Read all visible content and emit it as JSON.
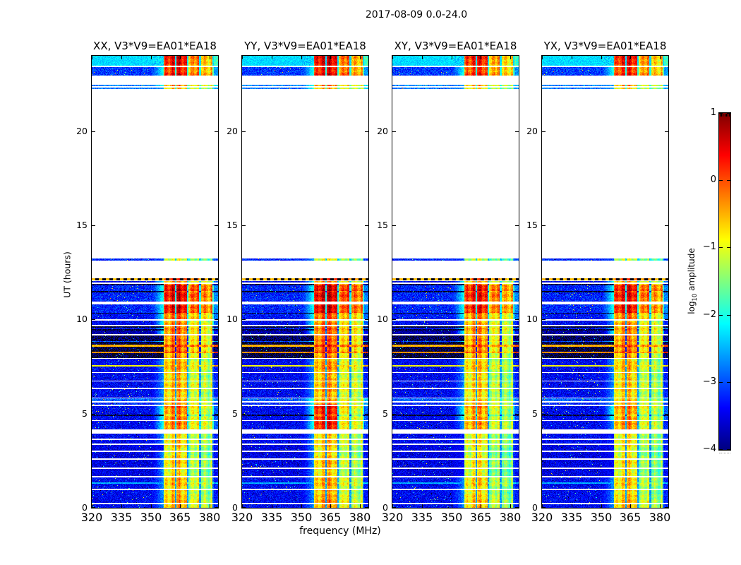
{
  "figure": {
    "title": "2017-08-09 0.0-24.0",
    "background": "#ffffff"
  },
  "chart_data": {
    "type": "heatmap",
    "title": "2017-08-09 0.0-24.0",
    "xlabel": "frequency (MHz)",
    "ylabel": "UT (hours)",
    "x_range_mhz": [
      320,
      384.3
    ],
    "y_range_hours": [
      0,
      24
    ],
    "x_ticks": [
      320,
      335,
      350,
      365,
      380
    ],
    "y_ticks": [
      0,
      5,
      10,
      15,
      20
    ],
    "grid": false,
    "colormap": "jet",
    "panels": [
      {
        "pol": "xx",
        "title": "XX, V3*V9=EA01*EA18",
        "seed": 101,
        "gain": 0,
        "boost_4to5": 0
      },
      {
        "pol": "yy",
        "title": "YY, V3*V9=EA01*EA18",
        "seed": 202,
        "gain": 0.1,
        "boost_4to5": 0.45
      },
      {
        "pol": "xy",
        "title": "XY, V3*V9=EA01*EA18",
        "seed": 303,
        "gain": -0.15,
        "boost_4to5": 0
      },
      {
        "pol": "yx",
        "title": "YX, V3*V9=EA01*EA18",
        "seed": 404,
        "gain": -0.1,
        "boost_4to5": 0
      }
    ],
    "rfi_blocks_mhz": [
      [
        356.8,
        362.3
      ],
      [
        363.2,
        368.4
      ],
      [
        369.3,
        374.7
      ],
      [
        375.7,
        381.3
      ]
    ],
    "lead_in_mhz": [
      350.5,
      356.8
    ],
    "edge_zone_mhz": [
      381.3,
      382.3
    ],
    "segments": [
      {
        "t0": 0.0,
        "t1": 0.18,
        "bg": -3.4,
        "rfi": [
          -0.6,
          -0.5,
          -1.1,
          -1.1
        ]
      },
      {
        "t0": 0.18,
        "t1": 0.26,
        "bg": "white"
      },
      {
        "t0": 0.26,
        "t1": 0.93,
        "bg": -3.4,
        "rfi": [
          -0.6,
          -0.5,
          -1.1,
          -1.2
        ]
      },
      {
        "t0": 0.93,
        "t1": 1.0,
        "bg": "white"
      },
      {
        "t0": 1.0,
        "t1": 1.28,
        "bg": -3.4,
        "rfi": [
          -0.7,
          -0.6,
          -1.2,
          -1.2
        ]
      },
      {
        "t0": 1.28,
        "t1": 1.35,
        "bg": -2.5,
        "rfi": [
          -0.6,
          -0.5,
          -1.1,
          -1.1
        ]
      },
      {
        "t0": 1.35,
        "t1": 1.62,
        "bg": -3.4,
        "rfi": [
          -0.7,
          -0.6,
          -1.2,
          -1.2
        ]
      },
      {
        "t0": 1.62,
        "t1": 1.7,
        "bg": "white"
      },
      {
        "t0": 1.7,
        "t1": 2.08,
        "bg": -3.5,
        "rfi": [
          -0.8,
          -0.7,
          -1.3,
          -1.3
        ]
      },
      {
        "t0": 2.08,
        "t1": 2.15,
        "bg": "white"
      },
      {
        "t0": 2.15,
        "t1": 2.55,
        "bg": -3.5,
        "rfi": [
          -0.8,
          -0.7,
          -1.3,
          -1.3
        ]
      },
      {
        "t0": 2.55,
        "t1": 2.62,
        "bg": "white"
      },
      {
        "t0": 2.62,
        "t1": 2.95,
        "bg": -3.5,
        "rfi": [
          -0.8,
          -0.7,
          -1.3,
          -1.3
        ]
      },
      {
        "t0": 2.95,
        "t1": 3.02,
        "bg": "white"
      },
      {
        "t0": 3.02,
        "t1": 3.33,
        "bg": -3.5,
        "rfi": [
          -0.9,
          -0.8,
          -1.3,
          -1.3
        ]
      },
      {
        "t0": 3.33,
        "t1": 3.4,
        "bg": "white"
      },
      {
        "t0": 3.4,
        "t1": 3.6,
        "bg": -3.4,
        "rfi": [
          -0.8,
          -0.7,
          -1.2,
          -1.2
        ]
      },
      {
        "t0": 3.6,
        "t1": 3.66,
        "bg": "white"
      },
      {
        "t0": 3.66,
        "t1": 3.92,
        "bg": -3.4,
        "rfi": [
          -0.8,
          -0.7,
          -1.2,
          -1.2
        ]
      },
      {
        "t0": 3.92,
        "t1": 4.16,
        "bg": "white"
      },
      {
        "t0": 4.16,
        "t1": 4.6,
        "bg": -3.4,
        "rfi": [
          -0.4,
          -0.3,
          -1.0,
          -1.0
        ]
      },
      {
        "t0": 4.6,
        "t1": 4.66,
        "bg": "white"
      },
      {
        "t0": 4.66,
        "t1": 4.88,
        "bg": -3.4,
        "rfi": [
          -0.3,
          -0.2,
          -1.0,
          -1.0
        ]
      },
      {
        "t0": 4.88,
        "t1": 4.94,
        "bg": -4.2,
        "rfi": [
          -0.5,
          -0.4,
          -1.2,
          -1.2
        ]
      },
      {
        "t0": 4.94,
        "t1": 5.4,
        "bg": -3.4,
        "rfi": [
          -0.3,
          -0.2,
          -0.9,
          -1.0
        ]
      },
      {
        "t0": 5.4,
        "t1": 5.46,
        "bg": "white"
      },
      {
        "t0": 5.46,
        "t1": 5.6,
        "bg": -3.2,
        "rfi": [
          -0.5,
          -0.4,
          -1.0,
          -1.0
        ]
      },
      {
        "t0": 5.6,
        "t1": 5.66,
        "bg": "white"
      },
      {
        "t0": 5.66,
        "t1": 5.8,
        "bg": -2.9,
        "rfi": [
          -0.5,
          -0.4,
          -1.0,
          -1.0
        ]
      },
      {
        "t0": 5.8,
        "t1": 5.86,
        "bg": "white"
      },
      {
        "t0": 5.86,
        "t1": 6.3,
        "bg": -3.4,
        "rfi": [
          -0.6,
          -0.5,
          -1.1,
          -1.1
        ]
      },
      {
        "t0": 6.3,
        "t1": 6.36,
        "bg": "white"
      },
      {
        "t0": 6.36,
        "t1": 6.7,
        "bg": -3.4,
        "rfi": [
          -0.7,
          -0.6,
          -1.1,
          -1.1
        ]
      },
      {
        "t0": 6.7,
        "t1": 6.76,
        "bg": "white"
      },
      {
        "t0": 6.76,
        "t1": 7.15,
        "bg": -3.4,
        "rfi": [
          -0.6,
          -0.5,
          -1.1,
          -1.1
        ]
      },
      {
        "t0": 7.15,
        "t1": 7.21,
        "bg": "white"
      },
      {
        "t0": 7.21,
        "t1": 7.5,
        "bg": -3.4,
        "rfi": [
          -0.6,
          -0.5,
          -1.1,
          -1.1
        ]
      },
      {
        "t0": 7.5,
        "t1": 7.58,
        "bg": -0.9,
        "rfi": [
          -0.4,
          -0.4,
          -0.8,
          -0.8
        ]
      },
      {
        "t0": 7.58,
        "t1": 7.9,
        "bg": -3.4,
        "rfi": [
          -0.6,
          -0.5,
          -1.1,
          -1.1
        ]
      },
      {
        "t0": 7.9,
        "t1": 7.96,
        "bg": "white"
      },
      {
        "t0": 7.96,
        "t1": 8.22,
        "bg": -4.2,
        "rfi": [
          -0.4,
          -0.3,
          -0.9,
          -0.9
        ]
      },
      {
        "t0": 8.22,
        "t1": 8.3,
        "bg": -0.3,
        "rfi": [
          0.1,
          0.1,
          -0.4,
          -0.4
        ]
      },
      {
        "t0": 8.3,
        "t1": 8.55,
        "bg": -4.2,
        "rfi": [
          -0.3,
          -0.2,
          -0.8,
          -0.8
        ]
      },
      {
        "t0": 8.55,
        "t1": 8.66,
        "bg": -0.5,
        "rfi": [
          0.0,
          0.0,
          -0.4,
          -0.4
        ]
      },
      {
        "t0": 8.66,
        "t1": 8.8,
        "bg": -4.2,
        "rfi": [
          -0.3,
          -0.2,
          -0.8,
          -0.8
        ]
      },
      {
        "t0": 8.8,
        "t1": 8.86,
        "bg": -3.0,
        "rfi": [
          -0.3,
          -0.2,
          -0.8,
          -0.8
        ]
      },
      {
        "t0": 8.86,
        "t1": 9.15,
        "bg": -4.1,
        "rfi": [
          -0.2,
          -0.1,
          -0.7,
          -0.7
        ]
      },
      {
        "t0": 9.15,
        "t1": 9.21,
        "bg": "white"
      },
      {
        "t0": 9.21,
        "t1": 9.4,
        "bg": -3.8,
        "rfi": [
          -0.3,
          -0.2,
          -0.8,
          -0.8
        ]
      },
      {
        "t0": 9.4,
        "t1": 9.47,
        "bg": -4.25,
        "rfi": [
          -0.4,
          -0.3,
          -0.9,
          -0.9
        ]
      },
      {
        "t0": 9.47,
        "t1": 9.55,
        "bg": -3.3,
        "rfi": [
          -0.3,
          -0.2,
          -0.8,
          -0.8
        ]
      },
      {
        "t0": 9.55,
        "t1": 9.62,
        "bg": -4.25,
        "rfi": [
          -0.4,
          -0.3,
          -0.9,
          -0.9
        ]
      },
      {
        "t0": 9.62,
        "t1": 9.7,
        "bg": "white"
      },
      {
        "t0": 9.7,
        "t1": 9.95,
        "bg": -3.4,
        "rfi": [
          -0.4,
          -0.3,
          -0.9,
          -0.9
        ]
      },
      {
        "t0": 9.95,
        "t1": 10.02,
        "bg": "white"
      },
      {
        "t0": 10.02,
        "t1": 10.3,
        "bg": -3.3,
        "rfi": [
          -0.1,
          0.0,
          -0.6,
          -0.6
        ]
      },
      {
        "t0": 10.3,
        "t1": 10.36,
        "bg": -4.25,
        "rfi": [
          -0.2,
          -0.1,
          -0.7,
          -0.7
        ]
      },
      {
        "t0": 10.36,
        "t1": 10.8,
        "bg": -3.2,
        "rfi": [
          0.3,
          0.4,
          -0.2,
          -0.2
        ]
      },
      {
        "t0": 10.8,
        "t1": 10.95,
        "bg": "white"
      },
      {
        "t0": 10.95,
        "t1": 11.0,
        "bg": -3.3,
        "rfi": [
          0.2,
          0.3,
          -0.3,
          -0.3
        ]
      },
      {
        "t0": 11.0,
        "t1": 11.45,
        "bg": -3.2,
        "rfi": [
          0.5,
          0.6,
          0.0,
          -0.1
        ]
      },
      {
        "t0": 11.45,
        "t1": 11.5,
        "bg": -4.25,
        "rfi": [
          0.0,
          0.1,
          -0.5,
          -0.5
        ]
      },
      {
        "t0": 11.5,
        "t1": 11.82,
        "bg": -3.2,
        "rfi": [
          0.4,
          0.5,
          -0.1,
          -0.1
        ]
      },
      {
        "t0": 11.82,
        "t1": 11.88,
        "bg": -4.1,
        "rfi": [
          -0.2,
          -0.1,
          -0.6,
          -0.6
        ]
      },
      {
        "t0": 11.88,
        "t1": 11.95,
        "bg": "white"
      },
      {
        "t0": 11.95,
        "t1": 12.02,
        "bg": -3.4,
        "rfi": [
          -0.3,
          -0.2,
          -0.8,
          -0.8
        ]
      },
      {
        "t0": 12.02,
        "t1": 12.08,
        "bg": "white"
      },
      {
        "t0": 12.08,
        "t1": 12.18,
        "bg": -4.3,
        "rfi": [
          0.1,
          0.1,
          -0.4,
          -0.4
        ],
        "kind": "dashed"
      },
      {
        "t0": 12.18,
        "t1": 13.12,
        "bg": "white"
      },
      {
        "t0": 13.12,
        "t1": 13.22,
        "bg": -3.2,
        "rfi": [
          -0.9,
          -0.8,
          -1.3,
          -1.3
        ]
      },
      {
        "t0": 13.22,
        "t1": 22.25,
        "bg": "white"
      },
      {
        "t0": 22.25,
        "t1": 22.33,
        "bg": -2.8,
        "rfi": [
          -0.5,
          -0.4,
          -1.0,
          -1.0
        ]
      },
      {
        "t0": 22.33,
        "t1": 22.4,
        "bg": "white"
      },
      {
        "t0": 22.4,
        "t1": 22.48,
        "bg": -2.7,
        "rfi": [
          -0.4,
          -0.3,
          -0.9,
          -0.9
        ]
      },
      {
        "t0": 22.48,
        "t1": 22.94,
        "bg": "white"
      },
      {
        "t0": 22.94,
        "t1": 23.4,
        "bg": -3.1,
        "rfi": [
          0.2,
          0.3,
          -0.3,
          -0.4
        ]
      },
      {
        "t0": 23.4,
        "t1": 23.47,
        "bg": "white"
      },
      {
        "t0": 23.47,
        "t1": 24.0,
        "bg": -2.3,
        "rfi": [
          0.3,
          0.4,
          -0.35,
          -0.5
        ]
      }
    ]
  },
  "colorbar": {
    "label_prefix": "log",
    "label_sub": "10",
    "label_suffix": " amplitude",
    "tick_values": [
      1,
      0,
      -1,
      -2,
      -3,
      -4
    ],
    "tick_labels": [
      "1",
      "0",
      "−1",
      "−2",
      "−3",
      "−4"
    ],
    "vmin": -4,
    "vmax": 1,
    "colormap": "jet"
  }
}
